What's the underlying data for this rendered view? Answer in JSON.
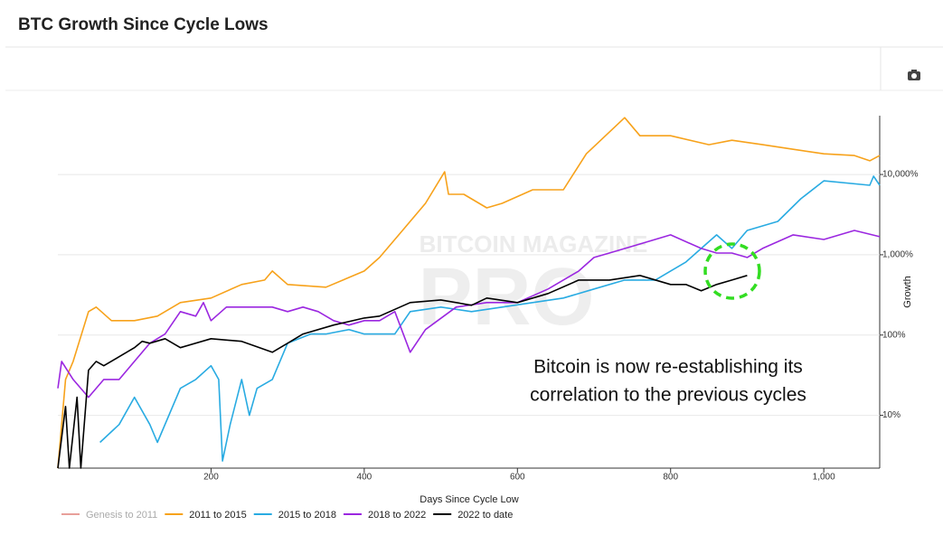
{
  "chart_data": {
    "type": "line",
    "title": "BTC Growth Since Cycle Lows",
    "xlabel": "Days Since Cycle Low",
    "ylabel": "Growth",
    "watermark": [
      "BITCOIN MAGAZINE",
      "PRO"
    ],
    "annotation": [
      "Bitcoin is now re-establishing its",
      "correlation to the previous cycles"
    ],
    "xlim": [
      0,
      1073
    ],
    "xticks": [
      200,
      400,
      600,
      800,
      {
        "value": 1000,
        "label": "1,000"
      }
    ],
    "ylim": [
      2.2,
      54000
    ],
    "log_y": true,
    "grid": true,
    "yticks": [
      {
        "value": 10,
        "label": "10%"
      },
      {
        "value": 100,
        "label": "100%"
      },
      {
        "value": 1000,
        "label": "1,000%"
      },
      {
        "value": 10000,
        "label": "10,000%"
      }
    ],
    "legend": "bottom-left",
    "series": [
      {
        "name": "Genesis to 2011",
        "color": "#e8a09a",
        "visible": false,
        "x": [],
        "values": []
      },
      {
        "name": "2011 to 2015",
        "color": "#f7a21b",
        "x": [
          0,
          10,
          20,
          40,
          50,
          70,
          100,
          130,
          160,
          200,
          240,
          270,
          280,
          300,
          350,
          400,
          420,
          450,
          480,
          505,
          510,
          530,
          560,
          580,
          620,
          660,
          690,
          740,
          760,
          800,
          850,
          880,
          920,
          960,
          1000,
          1040,
          1060,
          1073
        ],
        "values": [
          2.2,
          28,
          47,
          196,
          223,
          151,
          151,
          172,
          254,
          289,
          426,
          484,
          628,
          426,
          394,
          628,
          925,
          2010,
          4370,
          10800,
          5660,
          5660,
          3840,
          4370,
          6440,
          6440,
          18100,
          51000,
          30400,
          30400,
          23500,
          26700,
          23500,
          20600,
          18100,
          17200,
          14800,
          17200
        ]
      },
      {
        "name": "2015 to 2018",
        "color": "#29abe2",
        "x": [
          55,
          80,
          100,
          120,
          130,
          160,
          180,
          200,
          210,
          215,
          225,
          240,
          250,
          260,
          280,
          300,
          330,
          350,
          380,
          400,
          440,
          460,
          500,
          540,
          580,
          620,
          660,
          700,
          740,
          780,
          800,
          820,
          840,
          860,
          880,
          900,
          940,
          970,
          1000,
          1060,
          1065,
          1073
        ],
        "values": [
          4.6,
          7.7,
          16.8,
          7.7,
          4.6,
          21.7,
          28,
          41.5,
          28,
          2.7,
          7.7,
          28,
          10,
          21.7,
          28,
          79,
          103,
          103,
          117,
          103,
          103,
          196,
          223,
          196,
          223,
          254,
          289,
          374,
          484,
          484,
          628,
          813,
          1200,
          1770,
          1200,
          2010,
          2600,
          4970,
          8340,
          7330,
          9500,
          7330
        ]
      },
      {
        "name": "2018 to 2022",
        "color": "#9b27e0",
        "x": [
          0,
          5,
          20,
          40,
          60,
          80,
          100,
          120,
          140,
          160,
          180,
          190,
          200,
          220,
          240,
          260,
          280,
          300,
          320,
          340,
          360,
          380,
          400,
          420,
          440,
          460,
          480,
          520,
          560,
          600,
          640,
          680,
          700,
          720,
          760,
          800,
          840,
          860,
          880,
          900,
          920,
          960,
          1000,
          1040,
          1073
        ],
        "values": [
          21.7,
          47,
          28,
          16.8,
          28,
          28,
          47,
          79,
          103,
          196,
          172,
          254,
          151,
          223,
          223,
          223,
          223,
          196,
          223,
          196,
          151,
          133,
          151,
          151,
          196,
          61,
          117,
          223,
          254,
          254,
          374,
          628,
          925,
          1050,
          1360,
          1770,
          1200,
          1050,
          1050,
          925,
          1200,
          1770,
          1550,
          2010,
          1680
        ]
      },
      {
        "name": "2022 to date",
        "color": "#000000",
        "x": [
          0,
          10,
          15,
          25,
          30,
          40,
          50,
          60,
          80,
          100,
          110,
          120,
          140,
          160,
          200,
          240,
          280,
          300,
          320,
          360,
          400,
          420,
          460,
          500,
          540,
          560,
          600,
          640,
          680,
          720,
          760,
          800,
          820,
          840,
          860,
          880,
          900
        ],
        "values": [
          2.2,
          12.9,
          2.2,
          16.8,
          2.2,
          36.5,
          47,
          41.5,
          53.7,
          69.7,
          83.4,
          79,
          90,
          69.7,
          90,
          83.4,
          61,
          79,
          103,
          133,
          163,
          172,
          254,
          274,
          235,
          289,
          254,
          329,
          484,
          484,
          552,
          426,
          426,
          356,
          426,
          484,
          552
        ]
      }
    ]
  }
}
